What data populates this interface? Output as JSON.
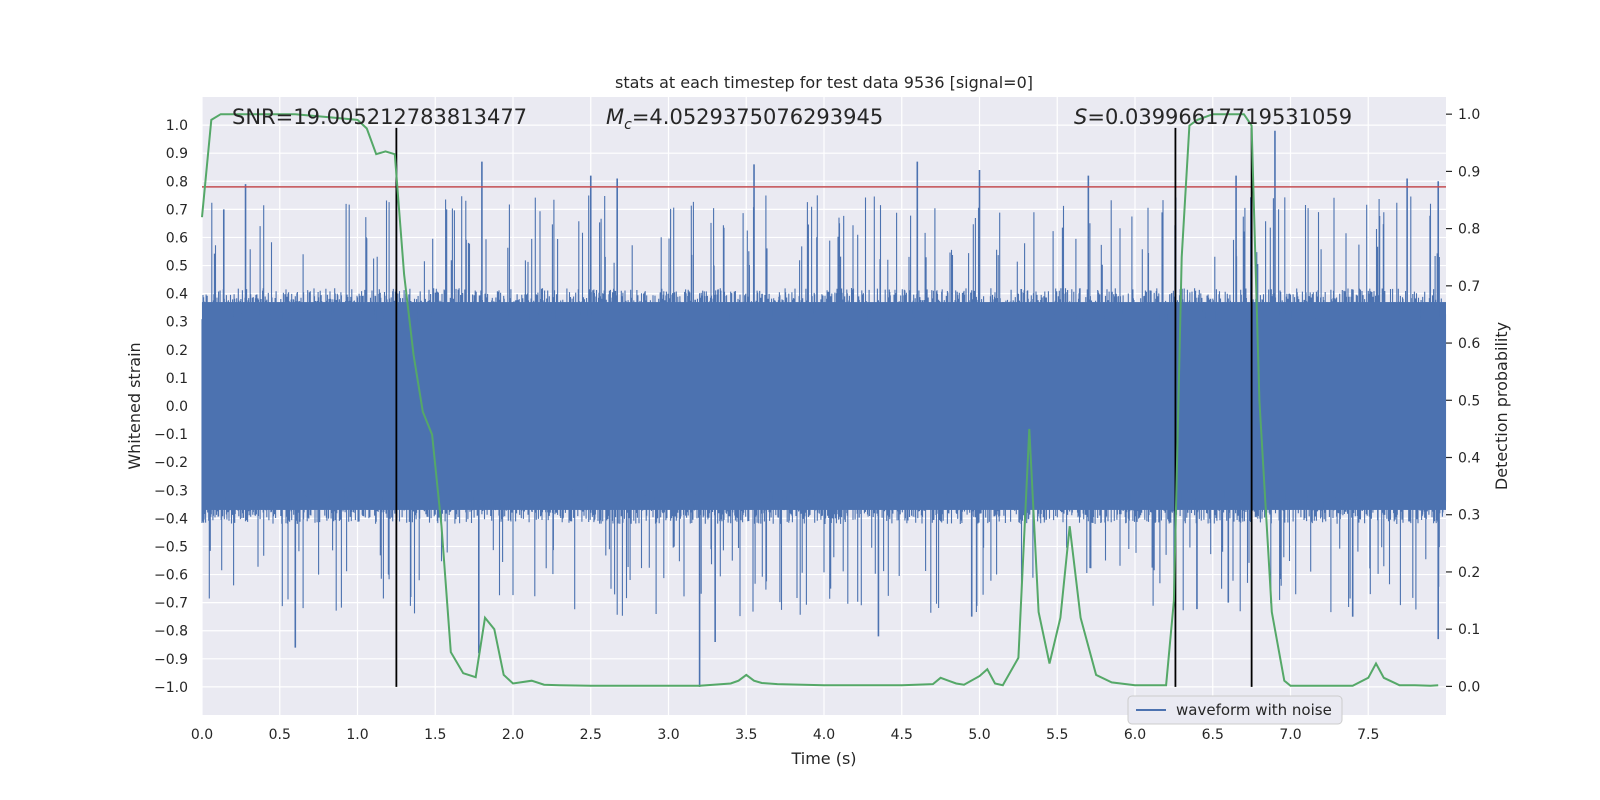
{
  "chart_data": {
    "type": "line",
    "title": "stats at each timestep for test data 9536 [signal=0]",
    "xlabel": "Time (s)",
    "ylabel_left": "Whitened strain",
    "ylabel_right": "Detection probability",
    "xlim": [
      0.0,
      8.0
    ],
    "ylim_left": [
      -1.1,
      1.1
    ],
    "ylim_right": [
      -0.05,
      1.03
    ],
    "grid": true,
    "legend_position": "lower-right",
    "xticks": [
      "0.0",
      "0.5",
      "1.0",
      "1.5",
      "2.0",
      "2.5",
      "3.0",
      "3.5",
      "4.0",
      "4.5",
      "5.0",
      "5.5",
      "6.0",
      "6.5",
      "7.0",
      "7.5"
    ],
    "yticks_left": [
      "1.0",
      "0.9",
      "0.8",
      "0.7",
      "0.6",
      "0.5",
      "0.4",
      "0.3",
      "0.2",
      "0.1",
      "0.0",
      "-0.1",
      "-0.2",
      "-0.3",
      "-0.4",
      "-0.5",
      "-0.6",
      "-0.7",
      "-0.8",
      "-0.9",
      "-1.0"
    ],
    "yticks_right": [
      "1.0",
      "0.9",
      "0.8",
      "0.7",
      "0.6",
      "0.5",
      "0.4",
      "0.3",
      "0.2",
      "0.1",
      "0.0"
    ],
    "annotations": {
      "snr": "SNR=19.005212783813477",
      "mc_symbol": "M",
      "mc_subscript": "c",
      "mc_value": "=4.0529375076293945",
      "s_symbol": "S",
      "s_value": "=0.03996617719531059"
    },
    "threshold": {
      "value": 0.78,
      "color": "#c44e52"
    },
    "vertical_lines": [
      1.25,
      6.26,
      6.75
    ],
    "series": [
      {
        "name": "waveform with noise",
        "color": "#4c72b0",
        "axis": "left",
        "description": "dense noise band approx between -0.4 and 0.4 with spikes up to ~0.87 and down to ~-1.0",
        "band": [
          -0.4,
          0.4
        ],
        "spikes_up": [
          [
            0.14,
            0.7
          ],
          [
            0.28,
            0.79
          ],
          [
            1.25,
            0.86
          ],
          [
            1.8,
            0.87
          ],
          [
            2.5,
            0.82
          ],
          [
            2.67,
            0.81
          ],
          [
            3.55,
            0.86
          ],
          [
            4.6,
            0.87
          ],
          [
            5.0,
            0.84
          ],
          [
            5.7,
            0.82
          ],
          [
            6.65,
            0.82
          ],
          [
            6.9,
            0.98
          ],
          [
            7.75,
            0.81
          ],
          [
            7.95,
            0.8
          ]
        ],
        "spikes_down": [
          [
            0.6,
            -0.86
          ],
          [
            1.2,
            -0.6
          ],
          [
            1.78,
            -0.88
          ],
          [
            3.2,
            -1.0
          ],
          [
            3.3,
            -0.84
          ],
          [
            4.35,
            -0.82
          ],
          [
            4.95,
            -0.75
          ],
          [
            6.6,
            -0.7
          ],
          [
            7.4,
            -0.75
          ],
          [
            7.95,
            -0.83
          ]
        ]
      },
      {
        "name": "detection probability",
        "color": "#55a868",
        "axis": "right",
        "x": [
          0.0,
          0.06,
          0.12,
          0.2,
          0.4,
          0.6,
          0.8,
          1.0,
          1.06,
          1.12,
          1.18,
          1.24,
          1.3,
          1.36,
          1.42,
          1.48,
          1.54,
          1.6,
          1.68,
          1.76,
          1.82,
          1.88,
          1.94,
          2.0,
          2.12,
          2.2,
          2.3,
          2.5,
          3.0,
          3.2,
          3.4,
          3.45,
          3.5,
          3.55,
          3.6,
          3.7,
          4.0,
          4.5,
          4.7,
          4.75,
          4.8,
          4.85,
          4.9,
          5.0,
          5.05,
          5.1,
          5.15,
          5.25,
          5.32,
          5.38,
          5.45,
          5.52,
          5.58,
          5.65,
          5.75,
          5.85,
          6.0,
          6.2,
          6.25,
          6.3,
          6.35,
          6.4,
          6.5,
          6.7,
          6.75,
          6.8,
          6.88,
          6.96,
          7.0,
          7.2,
          7.4,
          7.5,
          7.55,
          7.6,
          7.7,
          7.8,
          7.9,
          7.95
        ],
        "y": [
          0.82,
          0.99,
          1.0,
          1.0,
          1.0,
          1.0,
          0.995,
          0.99,
          0.975,
          0.93,
          0.935,
          0.93,
          0.72,
          0.58,
          0.48,
          0.44,
          0.28,
          0.06,
          0.023,
          0.016,
          0.12,
          0.1,
          0.02,
          0.005,
          0.01,
          0.003,
          0.002,
          0.001,
          0.001,
          0.001,
          0.005,
          0.01,
          0.02,
          0.01,
          0.006,
          0.004,
          0.002,
          0.002,
          0.004,
          0.015,
          0.01,
          0.005,
          0.003,
          0.018,
          0.03,
          0.005,
          0.002,
          0.05,
          0.45,
          0.13,
          0.04,
          0.12,
          0.28,
          0.12,
          0.02,
          0.007,
          0.002,
          0.002,
          0.15,
          0.75,
          0.98,
          0.99,
          1.0,
          1.0,
          0.98,
          0.5,
          0.13,
          0.01,
          0.001,
          0.001,
          0.001,
          0.015,
          0.04,
          0.015,
          0.002,
          0.002,
          0.001,
          0.002
        ]
      }
    ]
  }
}
